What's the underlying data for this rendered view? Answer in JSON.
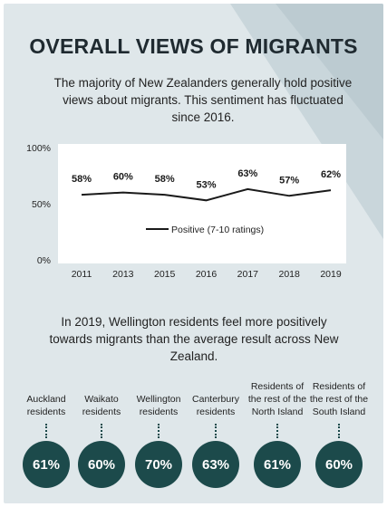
{
  "page": {
    "title": "OVERALL VIEWS OF MIGRANTS",
    "intro": "The majority of New Zealanders generally hold positive views about migrants. This sentiment has fluctuated since 2016.",
    "wellington_note": "In 2019, Wellington residents feel more positively towards migrants than the average result across New Zealand."
  },
  "chart_data": {
    "type": "line",
    "x": [
      "2011",
      "2013",
      "2015",
      "2016",
      "2017",
      "2018",
      "2019"
    ],
    "series": [
      {
        "name": "Positive (7-10 ratings)",
        "values": [
          58,
          60,
          58,
          53,
          63,
          57,
          62
        ],
        "labels": [
          "58%",
          "60%",
          "58%",
          "53%",
          "63%",
          "57%",
          "62%"
        ],
        "color": "#1a1a1a"
      }
    ],
    "y_ticks": [
      "100%",
      "50%",
      "0%"
    ],
    "ylim": [
      0,
      100
    ],
    "grid": false,
    "legend": "center",
    "annotation": "upward-triangle after 2019 value"
  },
  "regions": [
    {
      "label": "Auckland residents",
      "value": "61%"
    },
    {
      "label": "Waikato residents",
      "value": "60%"
    },
    {
      "label": "Wellington residents",
      "value": "70%"
    },
    {
      "label": "Canterbury residents",
      "value": "63%"
    },
    {
      "label": "Residents of the rest of the North Island",
      "value": "61%"
    },
    {
      "label": "Residents of the rest of the South Island",
      "value": "60%"
    }
  ],
  "colors": {
    "background": "#dfe7ea",
    "circle": "#1c4a4b",
    "line": "#1a1a1a",
    "triangle": "#7d7d7d"
  }
}
